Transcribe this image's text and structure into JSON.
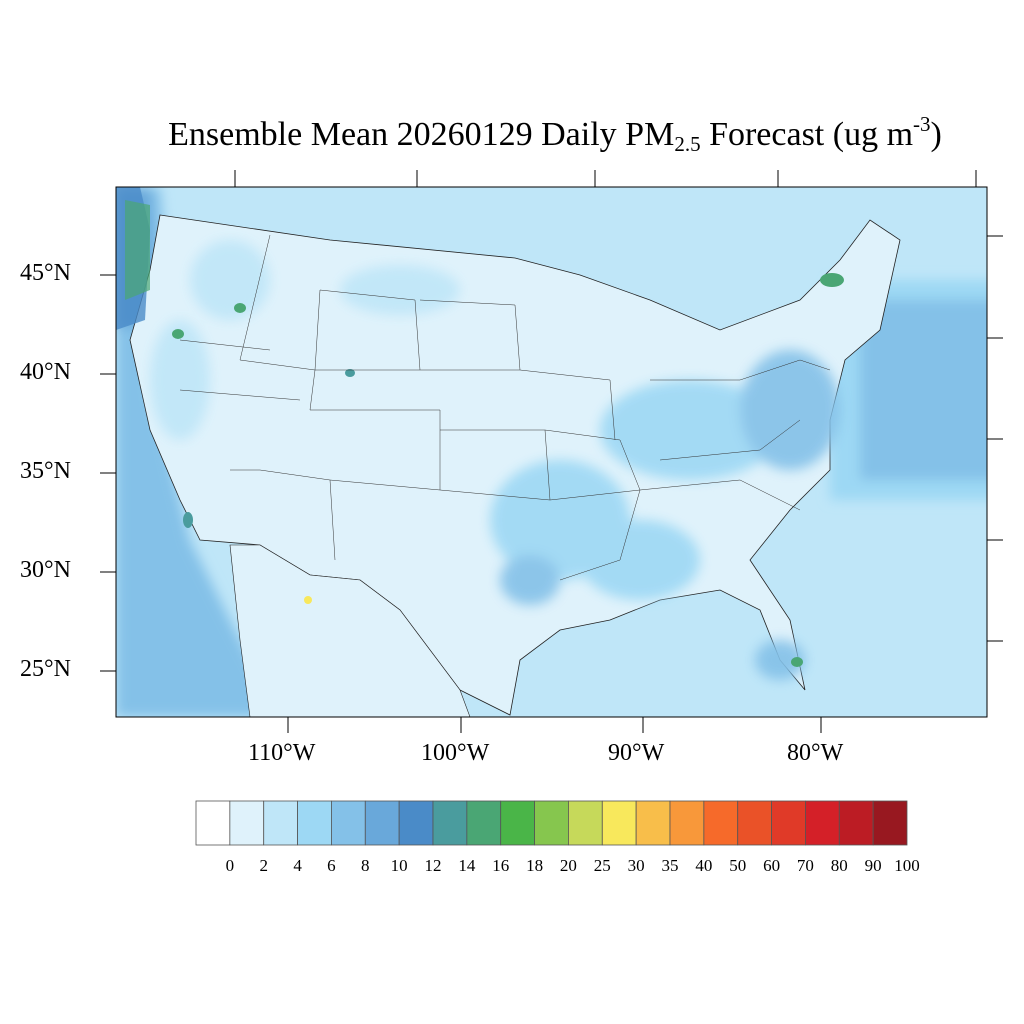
{
  "title": {
    "prefix": "Ensemble Mean 20260129 Daily PM",
    "sub": "2.5",
    "middle": " Forecast (ug m",
    "sup": "-3",
    "suffix": ")"
  },
  "lat_labels": [
    "45°N",
    "40°N",
    "35°N",
    "30°N",
    "25°N"
  ],
  "lon_labels": [
    "110°W",
    "100°W",
    "90°W",
    "80°W"
  ],
  "colorbar": {
    "labels": [
      "0",
      "2",
      "4",
      "6",
      "8",
      "10",
      "12",
      "14",
      "16",
      "18",
      "20",
      "25",
      "30",
      "35",
      "40",
      "50",
      "60",
      "70",
      "80",
      "90",
      "100"
    ],
    "colors": [
      "#ffffff",
      "#dff2fb",
      "#bfe6f8",
      "#9dd8f4",
      "#84c1e8",
      "#69a8da",
      "#4a8bc8",
      "#4a9c9e",
      "#4aa674",
      "#4ab548",
      "#86c64e",
      "#c6d95a",
      "#f8e85c",
      "#f8be4a",
      "#f8983a",
      "#f66a2a",
      "#ea5228",
      "#e03a28",
      "#d42028",
      "#bc1c24",
      "#981820"
    ]
  }
}
